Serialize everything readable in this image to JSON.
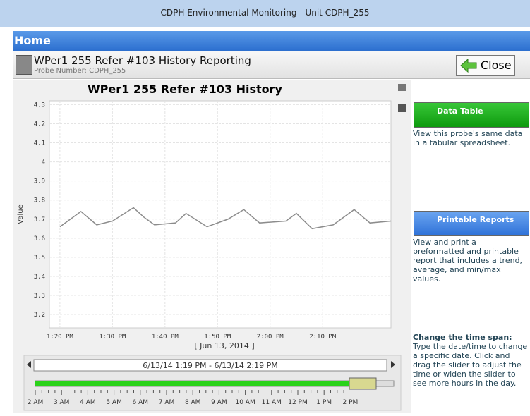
{
  "window": {
    "title": "CDPH Environmental Monitoring - Unit CDPH_255"
  },
  "nav": {
    "title": "Home"
  },
  "panel": {
    "title": "WPer1 255 Refer #103 History Reporting",
    "subtitle": "Probe Number: CDPH_255",
    "close": "Close"
  },
  "chart_data": {
    "type": "line",
    "title": "WPer1 255 Refer #103 History",
    "y_label": "Value",
    "x_label": "[ Jun 13, 2014 ]",
    "x": [
      "13:20",
      "13:24",
      "13:27",
      "13:30",
      "13:34",
      "13:36",
      "13:38",
      "13:42",
      "13:44",
      "13:48",
      "13:52",
      "13:55",
      "13:58",
      "14:03",
      "14:05",
      "14:08",
      "14:12",
      "14:16",
      "14:19",
      "14:23"
    ],
    "series": [
      {
        "name": "Value",
        "color": "#8c8c8c",
        "values": [
          3.66,
          3.74,
          3.67,
          3.69,
          3.76,
          3.71,
          3.67,
          3.68,
          3.73,
          3.66,
          3.7,
          3.75,
          3.68,
          3.69,
          3.73,
          3.65,
          3.67,
          3.75,
          3.68,
          3.69
        ]
      }
    ],
    "xlim": [
      "13:18",
      "14:23"
    ],
    "xticks": [
      {
        "value": "13:20",
        "label": "1:20 PM"
      },
      {
        "value": "13:30",
        "label": "1:30 PM"
      },
      {
        "value": "13:40",
        "label": "1:40 PM"
      },
      {
        "value": "13:50",
        "label": "1:50 PM"
      },
      {
        "value": "14:00",
        "label": "2:00 PM"
      },
      {
        "value": "14:10",
        "label": "2:10 PM"
      }
    ],
    "ylim": [
      3.13,
      4.32
    ],
    "yticks": [
      3.2,
      3.3,
      3.4,
      3.5,
      3.6,
      3.7,
      3.8,
      3.9,
      4,
      4.1,
      4.2,
      4.3
    ],
    "grid": true
  },
  "slider": {
    "range": "6/13/14 1:19 PM - 6/13/14 2:19 PM",
    "labels": [
      "2 AM",
      "3 AM",
      "4 AM",
      "5 AM",
      "6 AM",
      "7 AM",
      "8 AM",
      "9 AM",
      "10 AM",
      "11 AM",
      "12 PM",
      "1 PM",
      "2 PM"
    ]
  },
  "side": {
    "data_table": {
      "button": "Data Table",
      "text": "View this probe's same data in a tabular spreadsheet."
    },
    "reports": {
      "button": "Printable Reports",
      "text": "View and print a preformatted and printable report that includes a trend, average, and min/max values."
    },
    "time_span": {
      "title": "Change the time span:",
      "text": "Type the date/time to change a specific date. Click and drag the slider to adjust the time or widen the slider to see more hours in the day."
    }
  }
}
